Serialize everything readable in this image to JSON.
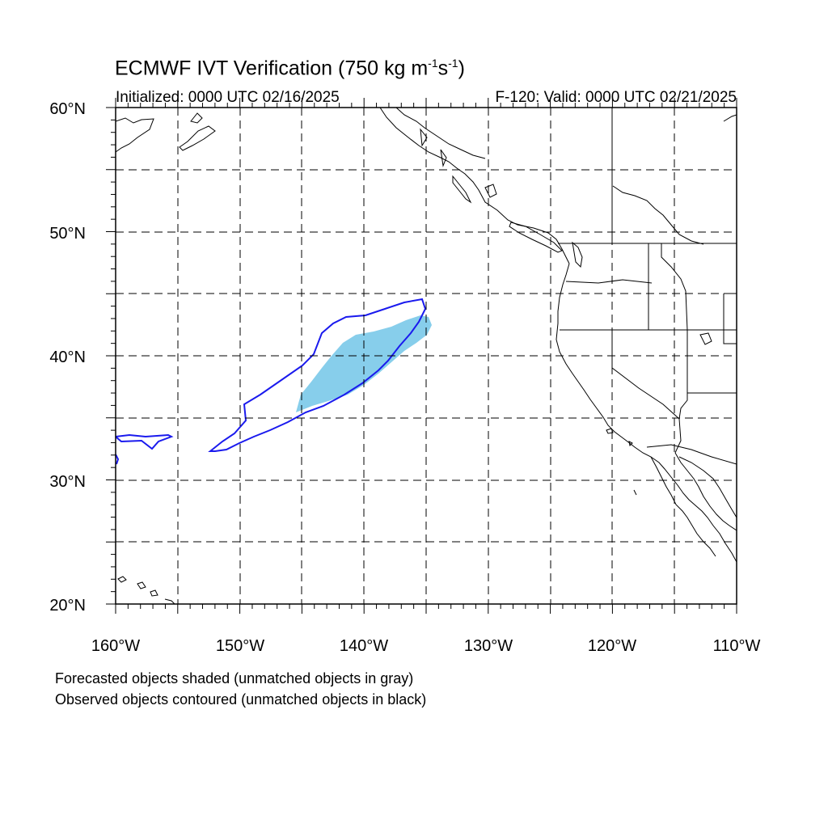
{
  "map": {
    "title_main": "ECMWF IVT Verification (750 kg m",
    "title_sup1": "-1",
    "title_mid": "s",
    "title_sup2": "-1",
    "title_end": ")",
    "initialized": "Initialized: 0000 UTC 02/16/2025",
    "valid": "F-120: Valid: 0000 UTC 02/21/2025",
    "lat_labels": [
      "60°N",
      "50°N",
      "40°N",
      "30°N",
      "20°N"
    ],
    "lon_labels": [
      "160°W",
      "150°W",
      "140°W",
      "130°W",
      "120°W",
      "110°W"
    ],
    "extent": {
      "lon": [
        -160,
        -110
      ],
      "lat": [
        20,
        60
      ]
    },
    "note_forecast": "Forecasted objects shaded (unmatched objects in gray)",
    "note_observed": "Observed objects contoured (unmatched objects in black)",
    "colors": {
      "forecast_fill": "#87ceeb",
      "observed_contour": "#1a1aee",
      "coastline": "#000000",
      "grid": "#000000"
    }
  }
}
